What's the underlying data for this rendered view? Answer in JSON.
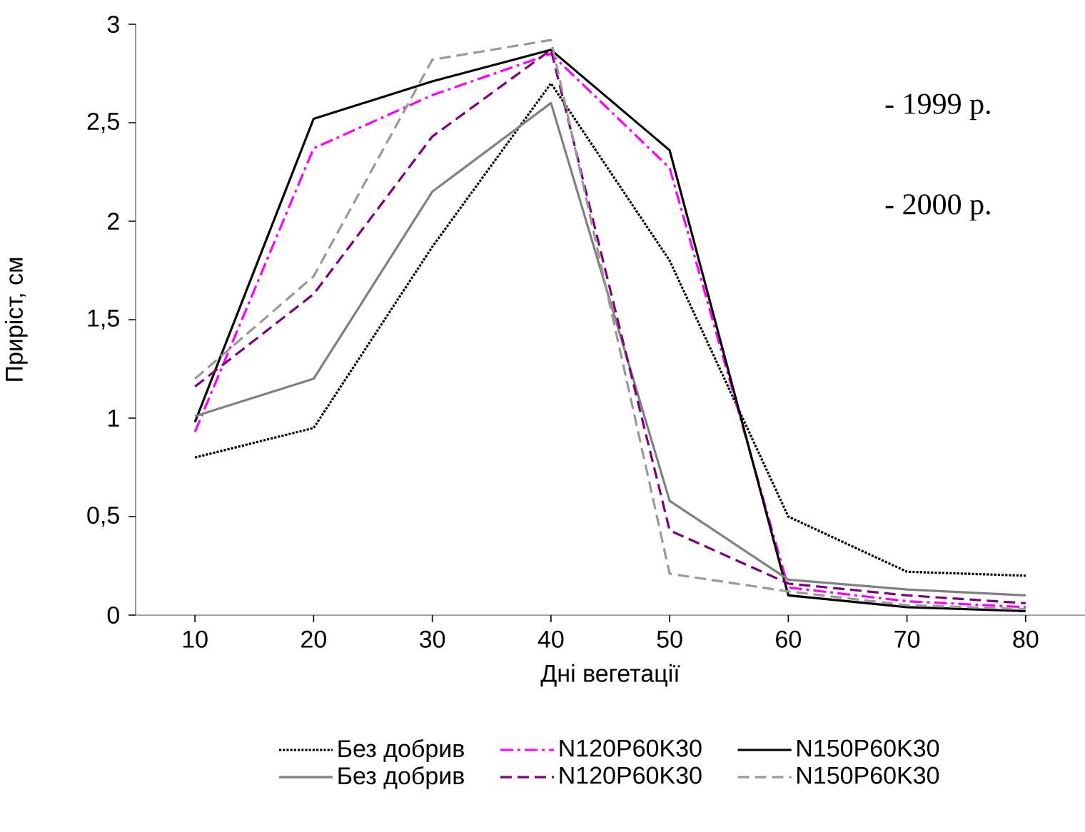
{
  "chart_data": {
    "type": "line",
    "xlabel": "Дні вегетації",
    "ylabel": "Приріст, см",
    "categories": [
      "10",
      "20",
      "30",
      "40",
      "50",
      "60",
      "70",
      "80"
    ],
    "series": [
      {
        "name": "Без добрив",
        "color": "#000000",
        "line_style": "dotted",
        "values": [
          0.8,
          0.95,
          1.87,
          2.7,
          1.8,
          0.5,
          0.22,
          0.2
        ]
      },
      {
        "name": "N120P60K30",
        "color": "#ff00ff",
        "line_style": "dashdot",
        "values": [
          0.93,
          2.37,
          2.64,
          2.85,
          2.27,
          0.14,
          0.07,
          0.04
        ]
      },
      {
        "name": "N150P60K30",
        "color": "#000000",
        "line_style": "solid",
        "values": [
          0.98,
          2.52,
          2.71,
          2.87,
          2.36,
          0.1,
          0.04,
          0.02
        ]
      },
      {
        "name": "Без добрив",
        "color": "#808080",
        "line_style": "solid",
        "values": [
          1.01,
          1.2,
          2.15,
          2.6,
          0.58,
          0.18,
          0.13,
          0.1
        ]
      },
      {
        "name": "N120P60K30",
        "color": "#800080",
        "line_style": "dashed",
        "values": [
          1.16,
          1.63,
          2.43,
          2.87,
          0.43,
          0.16,
          0.1,
          0.06
        ]
      },
      {
        "name": "N150P60K30",
        "color": "#999999",
        "line_style": "dashed",
        "values": [
          1.2,
          1.72,
          2.82,
          2.92,
          0.21,
          0.12,
          0.05,
          0.03
        ]
      }
    ],
    "ylim": [
      0,
      3
    ],
    "yticks": [
      0,
      {
        "value": 0.5,
        "label": "0,5"
      },
      1,
      {
        "value": 1.5,
        "label": "1,5"
      },
      2,
      {
        "value": 2.5,
        "label": "2,5"
      },
      3
    ],
    "annotations": [
      "- 1999 р.",
      "- 2000 р."
    ],
    "legend": "bottom",
    "marker": "none",
    "grid": false
  }
}
